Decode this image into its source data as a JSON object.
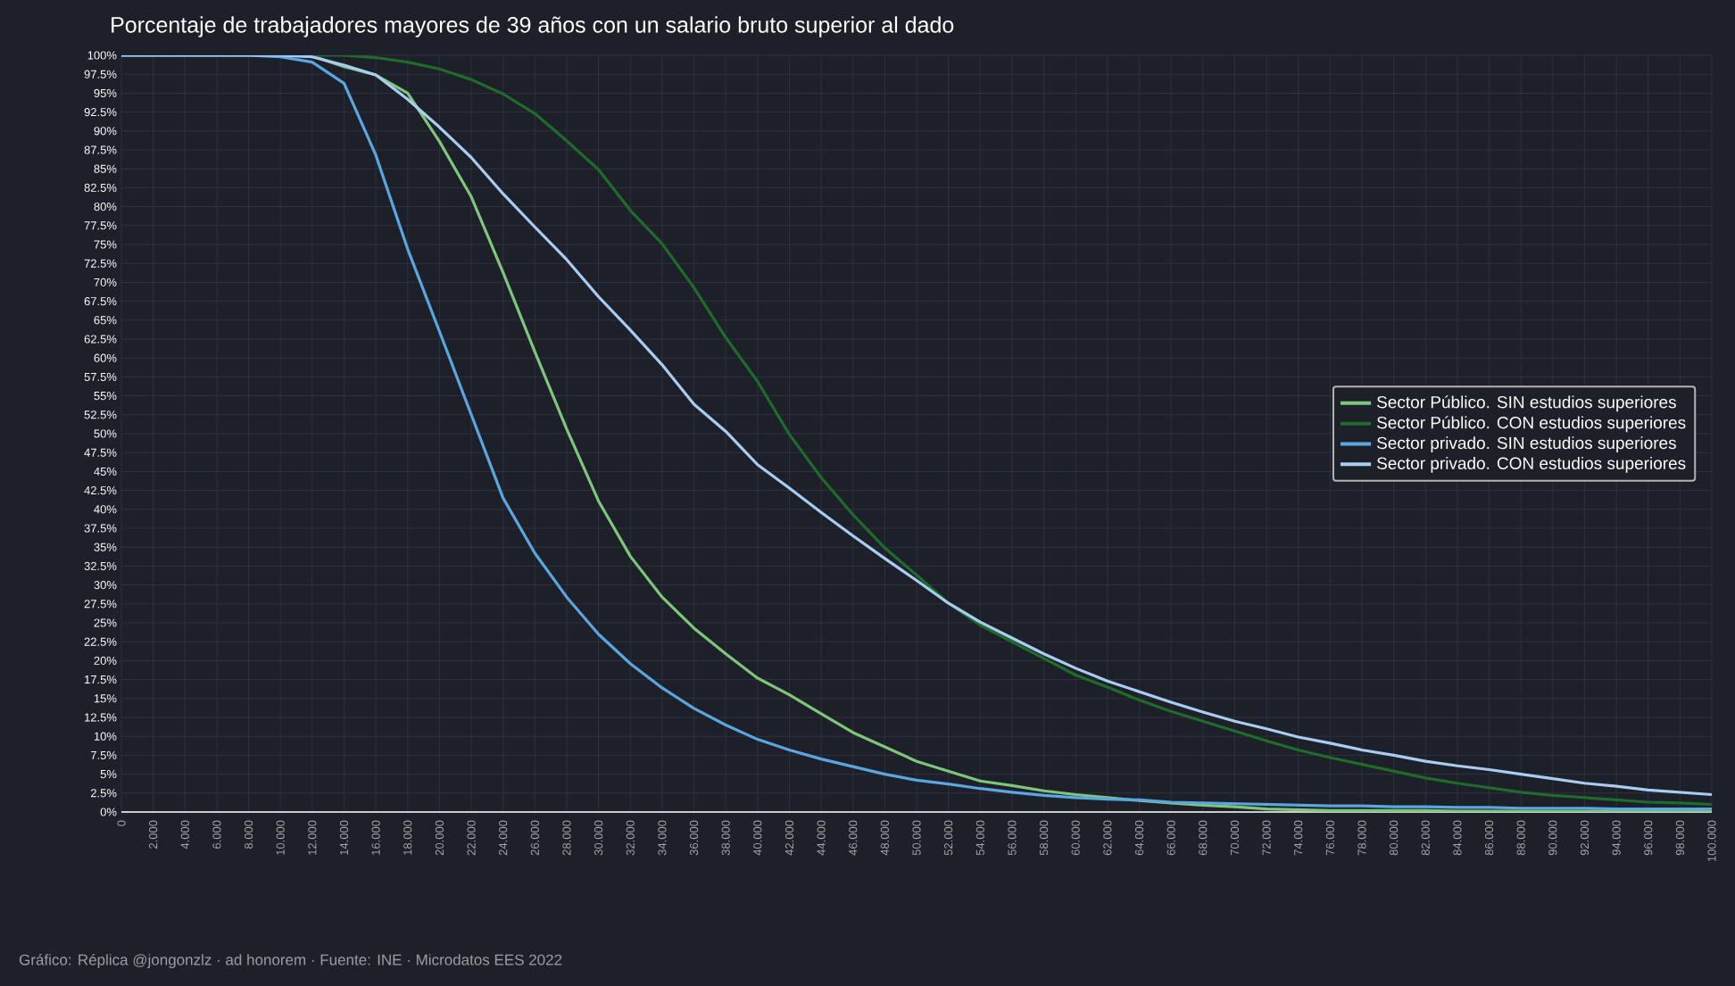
{
  "chart_data": {
    "type": "line",
    "title": "Porcentaje de trabajadores mayores de 39 años con un salario bruto superior al dado",
    "annotations": [
      "Gráfico: Réplica @jongonzlz · ad honorem  ·  Fuente: INE · Microdatos EES 2022"
    ],
    "x": [
      0,
      2,
      4,
      6,
      8,
      10,
      12,
      14,
      16,
      18,
      20,
      22,
      24,
      26,
      28,
      30,
      32,
      34,
      36,
      38,
      40,
      42,
      44,
      46,
      48,
      50,
      52,
      54,
      56,
      58,
      60,
      62,
      64,
      66,
      68,
      70,
      72,
      74,
      76,
      78,
      80,
      82,
      84,
      86,
      88,
      90,
      92,
      94,
      96,
      98,
      100
    ],
    "series": [
      {
        "name": "Sector Público. SIN estudios superiores",
        "color": "#7dc67a",
        "values": [
          null,
          null,
          null,
          null,
          null,
          100,
          99.9,
          98.5,
          97.4,
          95,
          88.6,
          81.3,
          71.3,
          60.8,
          50.6,
          41.1,
          33.8,
          28.4,
          24.3,
          20.9,
          17.7,
          15.5,
          13,
          10.5,
          8.6,
          6.7,
          5.4,
          4.1,
          3.5,
          2.8,
          2.3,
          1.9,
          1.5,
          1.2,
          0.9,
          0.7,
          0.4,
          0.3,
          0.2,
          0.2,
          0.2,
          0.2,
          0.1,
          0.1,
          0.1,
          0.1,
          0.1,
          0.1,
          0.1,
          0.1,
          0.1
        ]
      },
      {
        "name": "Sector Público. CON estudios superiores",
        "color": "#1e6b2b",
        "values": [
          null,
          null,
          null,
          null,
          null,
          null,
          100,
          100,
          99.7,
          99.1,
          98.2,
          96.8,
          94.9,
          92.3,
          88.7,
          84.9,
          79.5,
          75.1,
          69.3,
          62.7,
          56.9,
          49.9,
          44.2,
          39.3,
          34.9,
          31.3,
          27.6,
          24.7,
          22.5,
          20.3,
          18.1,
          16.5,
          14.8,
          13.3,
          12,
          10.7,
          9.4,
          8.2,
          7.2,
          6.3,
          5.4,
          4.5,
          3.8,
          3.2,
          2.6,
          2.2,
          1.9,
          1.6,
          1.3,
          1.2,
          1.0
        ]
      },
      {
        "name": "Sector privado. SIN estudios superiores",
        "color": "#5aa6e0",
        "values": [
          100,
          100,
          100,
          100,
          100,
          99.8,
          99.1,
          96.3,
          86.8,
          74.4,
          63.5,
          52.5,
          41.5,
          34.2,
          28.4,
          23.5,
          19.6,
          16.4,
          13.7,
          11.5,
          9.6,
          8.2,
          7,
          6,
          5,
          4.2,
          3.7,
          3.1,
          2.6,
          2.2,
          1.9,
          1.7,
          1.6,
          1.3,
          1.2,
          1.1,
          1,
          0.9,
          0.8,
          0.8,
          0.7,
          0.7,
          0.6,
          0.6,
          0.5,
          0.5,
          0.5,
          0.4,
          0.4,
          0.4,
          0.4
        ]
      },
      {
        "name": "Sector privado. CON estudios superiores",
        "color": "#a9cdf2",
        "values": [
          100,
          100,
          100,
          100,
          100,
          100,
          99.8,
          98.7,
          97.4,
          94.2,
          90.5,
          86.5,
          81.7,
          77.3,
          73,
          68.1,
          63.7,
          59.1,
          53.9,
          50.3,
          45.9,
          42.8,
          39.6,
          36.5,
          33.5,
          30.6,
          27.6,
          25.1,
          23,
          20.9,
          19,
          17.3,
          15.9,
          14.5,
          13.2,
          12,
          11,
          9.9,
          9.1,
          8.2,
          7.5,
          6.7,
          6.1,
          5.6,
          5,
          4.4,
          3.8,
          3.4,
          2.9,
          2.6,
          2.3
        ]
      }
    ],
    "xlim": [
      0,
      100
    ],
    "xticks": [
      0,
      {
        "value": 2,
        "label": "2.000"
      },
      {
        "value": 4,
        "label": "4.000"
      },
      {
        "value": 6,
        "label": "6.000"
      },
      {
        "value": 8,
        "label": "8.000"
      },
      {
        "value": 10,
        "label": "10.000"
      },
      {
        "value": 12,
        "label": "12.000"
      },
      {
        "value": 14,
        "label": "14.000"
      },
      {
        "value": 16,
        "label": "16.000"
      },
      {
        "value": 18,
        "label": "18.000"
      },
      {
        "value": 20,
        "label": "20.000"
      },
      {
        "value": 22,
        "label": "22.000"
      },
      {
        "value": 24,
        "label": "24.000"
      },
      {
        "value": 26,
        "label": "26.000"
      },
      {
        "value": 28,
        "label": "28.000"
      },
      {
        "value": 30,
        "label": "30.000"
      },
      {
        "value": 32,
        "label": "32.000"
      },
      {
        "value": 34,
        "label": "34.000"
      },
      {
        "value": 36,
        "label": "36.000"
      },
      {
        "value": 38,
        "label": "38.000"
      },
      {
        "value": 40,
        "label": "40.000"
      },
      {
        "value": 42,
        "label": "42.000"
      },
      {
        "value": 44,
        "label": "44.000"
      },
      {
        "value": 46,
        "label": "46.000"
      },
      {
        "value": 48,
        "label": "48.000"
      },
      {
        "value": 50,
        "label": "50.000"
      },
      {
        "value": 52,
        "label": "52.000"
      },
      {
        "value": 54,
        "label": "54.000"
      },
      {
        "value": 56,
        "label": "56.000"
      },
      {
        "value": 58,
        "label": "58.000"
      },
      {
        "value": 60,
        "label": "60.000"
      },
      {
        "value": 62,
        "label": "62.000"
      },
      {
        "value": 64,
        "label": "64.000"
      },
      {
        "value": 66,
        "label": "66.000"
      },
      {
        "value": 68,
        "label": "68.000"
      },
      {
        "value": 70,
        "label": "70.000"
      },
      {
        "value": 72,
        "label": "72.000"
      },
      {
        "value": 74,
        "label": "74.000"
      },
      {
        "value": 76,
        "label": "76.000"
      },
      {
        "value": 78,
        "label": "78.000"
      },
      {
        "value": 80,
        "label": "80.000"
      },
      {
        "value": 82,
        "label": "82.000"
      },
      {
        "value": 84,
        "label": "84.000"
      },
      {
        "value": 86,
        "label": "86.000"
      },
      {
        "value": 88,
        "label": "88.000"
      },
      {
        "value": 90,
        "label": "90.000"
      },
      {
        "value": 92,
        "label": "92.000"
      },
      {
        "value": 94,
        "label": "94.000"
      },
      {
        "value": 96,
        "label": "96.000"
      },
      {
        "value": 98,
        "label": "98.000"
      },
      {
        "value": 100,
        "label": "100.000"
      }
    ],
    "ylim": [
      0,
      100
    ],
    "yticks": [
      {
        "value": 0,
        "label": "0%"
      },
      {
        "value": 2.5,
        "label": "2.5%"
      },
      {
        "value": 5,
        "label": "5%"
      },
      {
        "value": 7.5,
        "label": "7.5%"
      },
      {
        "value": 10,
        "label": "10%"
      },
      {
        "value": 12.5,
        "label": "12.5%"
      },
      {
        "value": 15,
        "label": "15%"
      },
      {
        "value": 17.5,
        "label": "17.5%"
      },
      {
        "value": 20,
        "label": "20%"
      },
      {
        "value": 22.5,
        "label": "22.5%"
      },
      {
        "value": 25,
        "label": "25%"
      },
      {
        "value": 27.5,
        "label": "27.5%"
      },
      {
        "value": 30,
        "label": "30%"
      },
      {
        "value": 32.5,
        "label": "32.5%"
      },
      {
        "value": 35,
        "label": "35%"
      },
      {
        "value": 37.5,
        "label": "37.5%"
      },
      {
        "value": 40,
        "label": "40%"
      },
      {
        "value": 42.5,
        "label": "42.5%"
      },
      {
        "value": 45,
        "label": "45%"
      },
      {
        "value": 47.5,
        "label": "47.5%"
      },
      {
        "value": 50,
        "label": "50%"
      },
      {
        "value": 52.5,
        "label": "52.5%"
      },
      {
        "value": 55,
        "label": "55%"
      },
      {
        "value": 57.5,
        "label": "57.5%"
      },
      {
        "value": 60,
        "label": "60%"
      },
      {
        "value": 62.5,
        "label": "62.5%"
      },
      {
        "value": 65,
        "label": "65%"
      },
      {
        "value": 67.5,
        "label": "67.5%"
      },
      {
        "value": 70,
        "label": "70%"
      },
      {
        "value": 72.5,
        "label": "72.5%"
      },
      {
        "value": 75,
        "label": "75%"
      },
      {
        "value": 77.5,
        "label": "77.5%"
      },
      {
        "value": 80,
        "label": "80%"
      },
      {
        "value": 82.5,
        "label": "82.5%"
      },
      {
        "value": 85,
        "label": "85%"
      },
      {
        "value": 87.5,
        "label": "87.5%"
      },
      {
        "value": 90,
        "label": "90%"
      },
      {
        "value": 92.5,
        "label": "92.5%"
      },
      {
        "value": 95,
        "label": "95%"
      },
      {
        "value": 97.5,
        "label": "97.5%"
      },
      {
        "value": 100,
        "label": "100%"
      }
    ],
    "grid": true,
    "legend": "right",
    "marker": "none"
  }
}
